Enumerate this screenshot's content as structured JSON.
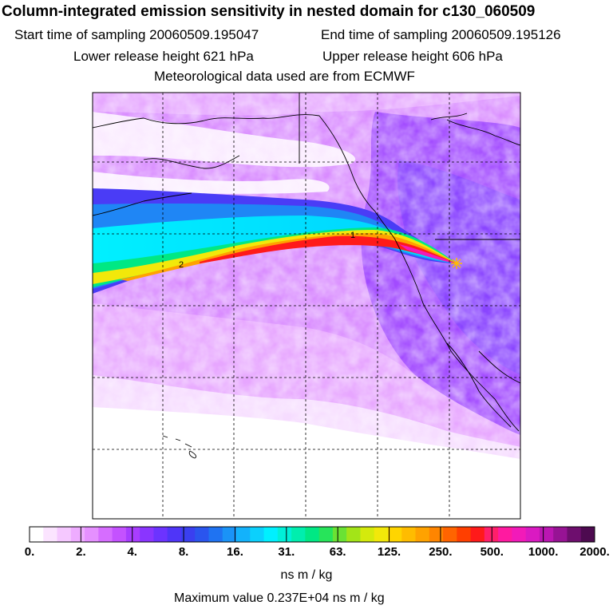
{
  "header": {
    "title": "Column-integrated emission sensitivity in nested domain for c130_060509",
    "start_label": "Start time of sampling 20060509.195047",
    "end_label": "End time of sampling 20060509.195126",
    "lower_label": "Lower release height  621 hPa",
    "upper_label": "Upper release height  606 hPa",
    "met_label": "Meteorological data used are from ECMWF"
  },
  "map": {
    "contour_labels": [
      "1",
      "2"
    ],
    "release_marker": "release-point"
  },
  "colorbar": {
    "tick_labels": [
      "0.",
      "2.",
      "4.",
      "8.",
      "16.",
      "31.",
      "63.",
      "125.",
      "250.",
      "500.",
      "1000.",
      "2000."
    ],
    "colors": [
      "#ffffff",
      "#fbe4ff",
      "#f5c8ff",
      "#eeacff",
      "#e590ff",
      "#d66dff",
      "#c452ff",
      "#a83dff",
      "#8a35ff",
      "#6c33ff",
      "#4f35f8",
      "#3a3ff0",
      "#2a55ee",
      "#1f73f2",
      "#1a93f7",
      "#13b2fb",
      "#0bd0fd",
      "#00f0ff",
      "#00f0d8",
      "#00eeae",
      "#00e884",
      "#27e45a",
      "#6ae234",
      "#a3e418",
      "#d4ea0c",
      "#f2e80a",
      "#ffd500",
      "#ffbc00",
      "#ffa200",
      "#ff8500",
      "#ff6400",
      "#ff3f00",
      "#ff1a1a",
      "#ff1f6a",
      "#ff1aa0",
      "#f21ab9",
      "#da1ac2",
      "#bb16b2",
      "#971394",
      "#6e0e6e",
      "#4d0a50"
    ],
    "unit": "ns m / kg",
    "max_value_label": "Maximum value  0.237E+04 ns m / kg"
  }
}
